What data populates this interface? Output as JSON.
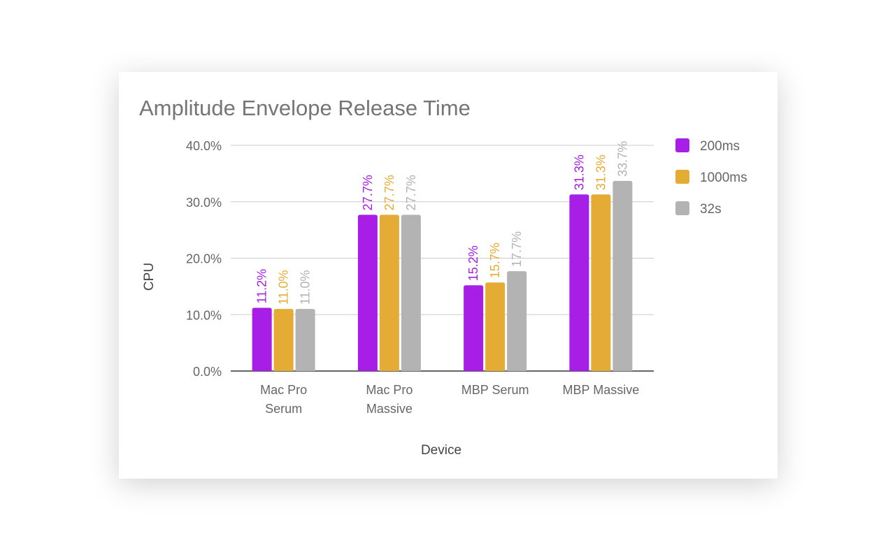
{
  "chart_data": {
    "type": "bar",
    "title": "Amplitude Envelope Release Time",
    "xlabel": "Device",
    "ylabel": "CPU",
    "ylim": [
      0,
      40
    ],
    "yticks": [
      "0.0%",
      "10.0%",
      "20.0%",
      "30.0%",
      "40.0%"
    ],
    "grid": true,
    "legend": "right",
    "categories": [
      [
        "Mac Pro",
        "Serum"
      ],
      [
        "Mac Pro",
        "Massive"
      ],
      [
        "MBP Serum"
      ],
      [
        "MBP Massive"
      ]
    ],
    "series": [
      {
        "name": "200ms",
        "color": "#a71ee6",
        "values": [
          11.2,
          27.7,
          15.2,
          31.3
        ],
        "labels": [
          "11.2%",
          "27.7%",
          "15.2%",
          "31.3%"
        ]
      },
      {
        "name": "1000ms",
        "color": "#e5ac35",
        "values": [
          11.0,
          27.7,
          15.7,
          31.3
        ],
        "labels": [
          "11.0%",
          "27.7%",
          "15.7%",
          "31.3%"
        ]
      },
      {
        "name": "32s",
        "color": "#b3b3b3",
        "values": [
          11.0,
          27.7,
          17.7,
          33.7
        ],
        "labels": [
          "11.0%",
          "27.7%",
          "17.7%",
          "33.7%"
        ]
      }
    ]
  }
}
